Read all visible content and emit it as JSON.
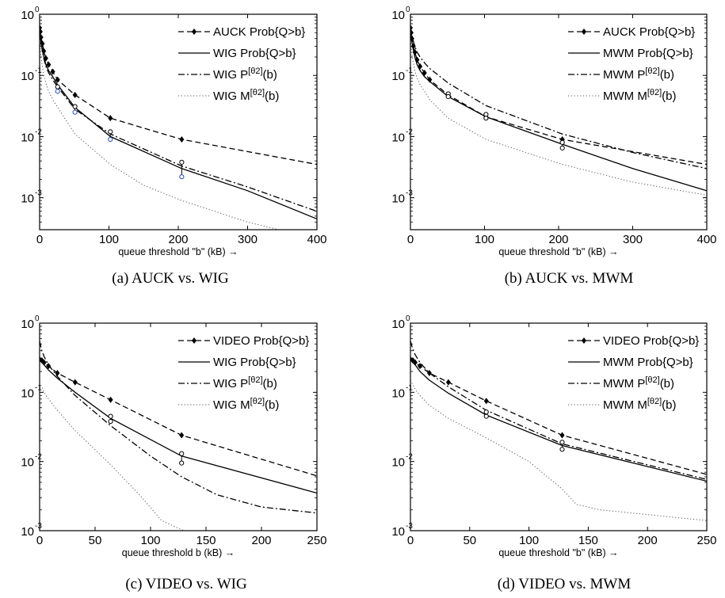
{
  "chart_data": [
    {
      "type": "line",
      "caption": "(a)  AUCK vs. WIG",
      "xlabel": "queue threshold \"b\" (kB) →",
      "xlim": [
        0,
        400
      ],
      "xticks": [
        "0",
        "100",
        "200",
        "300",
        "400"
      ],
      "ylim": [
        0.0003,
        1
      ],
      "yscale": "log",
      "yticks": [
        {
          "value": 1,
          "mantissa": "10",
          "exp": "0"
        },
        {
          "value": 0.1,
          "mantissa": "10",
          "exp": "-1"
        },
        {
          "value": 0.01,
          "mantissa": "10",
          "exp": "-2"
        },
        {
          "value": 0.001,
          "mantissa": "10",
          "exp": "-3"
        }
      ],
      "legend_position": "top-right",
      "series": [
        {
          "name": "AUCK Prob{Q>b}",
          "style": "dashed",
          "marker": "diamond",
          "x": [
            0,
            1,
            2,
            4,
            6,
            9,
            13,
            19,
            26,
            51,
            102,
            205,
            400
          ],
          "y": [
            0.6,
            0.52,
            0.42,
            0.33,
            0.25,
            0.19,
            0.15,
            0.115,
            0.085,
            0.048,
            0.02,
            0.009,
            0.0035
          ],
          "marker_x": [
            0,
            1,
            2,
            4,
            6,
            9,
            13,
            19,
            26,
            51,
            102,
            205
          ]
        },
        {
          "name": "WIG Prob{Q>b}",
          "style": "solid",
          "marker": "none",
          "x": [
            0,
            2,
            4,
            6,
            9,
            13,
            19,
            26,
            51,
            102,
            205,
            300,
            400
          ],
          "y": [
            0.55,
            0.35,
            0.26,
            0.2,
            0.15,
            0.12,
            0.095,
            0.07,
            0.03,
            0.01,
            0.003,
            0.0013,
            0.00045
          ]
        },
        {
          "name": "WIG P^[θ2](b)",
          "style": "dashdot",
          "marker": "none",
          "x": [
            0,
            2,
            4,
            6,
            9,
            13,
            19,
            26,
            51,
            102,
            205,
            300,
            400
          ],
          "y": [
            0.5,
            0.33,
            0.25,
            0.19,
            0.14,
            0.11,
            0.085,
            0.065,
            0.028,
            0.011,
            0.0033,
            0.0015,
            0.0006
          ]
        },
        {
          "name": "WIG M^[θ2](b)",
          "style": "dotted",
          "marker": "none",
          "x": [
            0,
            2,
            4,
            6,
            9,
            13,
            19,
            26,
            51,
            102,
            150,
            205,
            300,
            345
          ],
          "y": [
            0.35,
            0.2,
            0.14,
            0.1,
            0.075,
            0.055,
            0.04,
            0.03,
            0.011,
            0.0035,
            0.0016,
            0.0009,
            0.0004,
            0.0003
          ]
        }
      ],
      "error_bars": [
        {
          "x": 26,
          "low": 0.055,
          "high": 0.065
        },
        {
          "x": 51,
          "low": 0.025,
          "high": 0.031
        },
        {
          "x": 102,
          "low": 0.009,
          "high": 0.012
        },
        {
          "x": 205,
          "low": 0.0022,
          "high": 0.0038
        }
      ]
    },
    {
      "type": "line",
      "caption": "(b)  AUCK vs. MWM",
      "xlabel": "queue threshold \"b\" (kB) →",
      "xlim": [
        0,
        400
      ],
      "xticks": [
        "0",
        "100",
        "200",
        "300",
        "400"
      ],
      "ylim": [
        0.0003,
        1
      ],
      "yscale": "log",
      "yticks": [
        {
          "value": 1,
          "mantissa": "10",
          "exp": "0"
        },
        {
          "value": 0.1,
          "mantissa": "10",
          "exp": "-1"
        },
        {
          "value": 0.01,
          "mantissa": "10",
          "exp": "-2"
        },
        {
          "value": 0.001,
          "mantissa": "10",
          "exp": "-3"
        }
      ],
      "legend_position": "top-right",
      "series": [
        {
          "name": "AUCK Prob{Q>b}",
          "style": "dashed",
          "marker": "diamond",
          "x": [
            0,
            1,
            2,
            4,
            6,
            9,
            13,
            19,
            26,
            51,
            102,
            205,
            400
          ],
          "y": [
            0.6,
            0.5,
            0.4,
            0.3,
            0.24,
            0.18,
            0.14,
            0.11,
            0.085,
            0.048,
            0.021,
            0.009,
            0.0035
          ],
          "marker_x": [
            0,
            1,
            2,
            4,
            6,
            9,
            13,
            19,
            26,
            51,
            102,
            205
          ]
        },
        {
          "name": "MWM Prob{Q>b}",
          "style": "solid",
          "marker": "none",
          "x": [
            0,
            2,
            4,
            6,
            9,
            13,
            19,
            26,
            51,
            102,
            205,
            300,
            400
          ],
          "y": [
            0.55,
            0.35,
            0.26,
            0.2,
            0.15,
            0.12,
            0.095,
            0.08,
            0.045,
            0.021,
            0.0075,
            0.003,
            0.0013
          ]
        },
        {
          "name": "MWM P^[θ2](b)",
          "style": "dashdot",
          "marker": "none",
          "x": [
            0,
            2,
            4,
            6,
            9,
            13,
            19,
            26,
            51,
            102,
            205,
            300,
            400
          ],
          "y": [
            0.62,
            0.45,
            0.36,
            0.3,
            0.24,
            0.2,
            0.16,
            0.13,
            0.075,
            0.032,
            0.011,
            0.0055,
            0.003
          ]
        },
        {
          "name": "MWM M^[θ2](b)",
          "style": "dotted",
          "marker": "none",
          "x": [
            0,
            2,
            4,
            6,
            9,
            13,
            19,
            26,
            51,
            102,
            205,
            300,
            400
          ],
          "y": [
            0.38,
            0.22,
            0.16,
            0.12,
            0.09,
            0.07,
            0.055,
            0.04,
            0.02,
            0.009,
            0.0035,
            0.0018,
            0.0011
          ]
        }
      ],
      "error_bars": [
        {
          "x": 51,
          "low": 0.045,
          "high": 0.05
        },
        {
          "x": 102,
          "low": 0.02,
          "high": 0.023
        },
        {
          "x": 205,
          "low": 0.0065,
          "high": 0.008
        }
      ]
    },
    {
      "type": "line",
      "caption": "(c)  VIDEO vs. WIG",
      "xlabel": "queue threshold b (kB) →",
      "xlim": [
        0,
        250
      ],
      "xticks": [
        "0",
        "50",
        "100",
        "150",
        "200",
        "250"
      ],
      "ylim": [
        0.001,
        1
      ],
      "yscale": "log",
      "yticks": [
        {
          "value": 1,
          "mantissa": "10",
          "exp": "0"
        },
        {
          "value": 0.1,
          "mantissa": "10",
          "exp": "-1"
        },
        {
          "value": 0.01,
          "mantissa": "10",
          "exp": "-2"
        },
        {
          "value": 0.001,
          "mantissa": "10",
          "exp": "-3"
        }
      ],
      "legend_position": "top-right",
      "series": [
        {
          "name": "VIDEO Prob{Q>b}",
          "style": "dashed",
          "marker": "diamond",
          "x": [
            0,
            2,
            4,
            8,
            16,
            32,
            64,
            128,
            250
          ],
          "y": [
            0.3,
            0.29,
            0.27,
            0.24,
            0.19,
            0.14,
            0.078,
            0.024,
            0.0062
          ],
          "marker_x": [
            0,
            2,
            4,
            8,
            16,
            32,
            64,
            128
          ]
        },
        {
          "name": "WIG Prob{Q>b}",
          "style": "solid",
          "marker": "none",
          "x": [
            0,
            2,
            4,
            8,
            16,
            32,
            64,
            128,
            250
          ],
          "y": [
            0.3,
            0.27,
            0.25,
            0.21,
            0.16,
            0.1,
            0.042,
            0.012,
            0.0035
          ]
        },
        {
          "name": "WIG P^[θ2](b)",
          "style": "dashdot",
          "marker": "none",
          "x": [
            0,
            2,
            4,
            8,
            16,
            32,
            64,
            100,
            128,
            160,
            200,
            250
          ],
          "y": [
            0.55,
            0.4,
            0.33,
            0.25,
            0.17,
            0.09,
            0.033,
            0.012,
            0.006,
            0.0033,
            0.0022,
            0.0018
          ]
        },
        {
          "name": "WIG M^[θ2](b)",
          "style": "dotted",
          "marker": "none",
          "x": [
            0,
            2,
            4,
            8,
            16,
            32,
            64,
            90,
            110,
            130
          ],
          "y": [
            0.14,
            0.12,
            0.1,
            0.08,
            0.055,
            0.028,
            0.009,
            0.0033,
            0.0014,
            0.001
          ]
        }
      ],
      "error_bars": [
        {
          "x": 64,
          "low": 0.038,
          "high": 0.045
        },
        {
          "x": 128,
          "low": 0.0095,
          "high": 0.013
        }
      ]
    },
    {
      "type": "line",
      "caption": "(d)  VIDEO vs. MWM",
      "xlabel": "queue threshold \"b\" (kB) →",
      "xlim": [
        0,
        250
      ],
      "xticks": [
        "0",
        "50",
        "100",
        "150",
        "200",
        "250"
      ],
      "ylim": [
        0.001,
        1
      ],
      "yscale": "log",
      "yticks": [
        {
          "value": 1,
          "mantissa": "10",
          "exp": "0"
        },
        {
          "value": 0.1,
          "mantissa": "10",
          "exp": "-1"
        },
        {
          "value": 0.01,
          "mantissa": "10",
          "exp": "-2"
        },
        {
          "value": 0.001,
          "mantissa": "10",
          "exp": "-3"
        }
      ],
      "legend_position": "top-right",
      "series": [
        {
          "name": "VIDEO Prob{Q>b}",
          "style": "dashed",
          "marker": "diamond",
          "x": [
            0,
            2,
            4,
            8,
            16,
            32,
            64,
            128,
            250
          ],
          "y": [
            0.3,
            0.29,
            0.27,
            0.24,
            0.19,
            0.14,
            0.075,
            0.024,
            0.0065
          ],
          "marker_x": [
            0,
            2,
            4,
            8,
            16,
            32,
            64,
            128
          ]
        },
        {
          "name": "MWM Prob{Q>b}",
          "style": "solid",
          "marker": "none",
          "x": [
            0,
            2,
            4,
            8,
            16,
            32,
            64,
            128,
            250
          ],
          "y": [
            0.3,
            0.27,
            0.25,
            0.2,
            0.15,
            0.097,
            0.047,
            0.017,
            0.0052
          ]
        },
        {
          "name": "MWM P^[θ2](b)",
          "style": "dashdot",
          "marker": "none",
          "x": [
            0,
            2,
            4,
            8,
            16,
            32,
            64,
            128,
            250
          ],
          "y": [
            0.55,
            0.42,
            0.35,
            0.27,
            0.19,
            0.12,
            0.055,
            0.018,
            0.0055
          ]
        },
        {
          "name": "MWM M^[θ2](b)",
          "style": "dotted",
          "marker": "none",
          "x": [
            0,
            2,
            4,
            8,
            16,
            32,
            64,
            100,
            128,
            140,
            160,
            250
          ],
          "y": [
            0.15,
            0.13,
            0.11,
            0.09,
            0.065,
            0.042,
            0.022,
            0.01,
            0.004,
            0.0024,
            0.002,
            0.0014
          ]
        }
      ],
      "error_bars": [
        {
          "x": 64,
          "low": 0.045,
          "high": 0.052
        },
        {
          "x": 128,
          "low": 0.015,
          "high": 0.019
        }
      ]
    }
  ]
}
